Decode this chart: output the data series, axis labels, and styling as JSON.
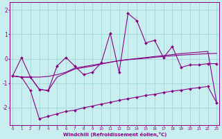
{
  "xlabel": "Windchill (Refroidissement éolien,°C)",
  "bg_color": "#c8eef0",
  "line_color": "#880088",
  "grid_color": "#a0d8d8",
  "x": [
    0,
    1,
    2,
    3,
    4,
    5,
    6,
    7,
    8,
    9,
    10,
    11,
    12,
    13,
    14,
    15,
    16,
    17,
    18,
    19,
    20,
    21,
    22,
    23
  ],
  "y_jagged": [
    -0.7,
    0.05,
    -0.75,
    -1.25,
    -1.3,
    -0.3,
    0.05,
    -0.3,
    -0.65,
    -0.55,
    -0.15,
    1.05,
    -0.55,
    1.85,
    1.55,
    0.65,
    0.75,
    0.05,
    0.5,
    -0.35,
    -0.25,
    -0.25,
    -0.2,
    -0.2
  ],
  "y_lower": [
    -0.7,
    -0.75,
    -1.3,
    -2.45,
    -2.35,
    -2.25,
    -2.15,
    -2.1,
    -2.0,
    -1.93,
    -1.85,
    -1.78,
    -1.7,
    -1.63,
    -1.57,
    -1.5,
    -1.45,
    -1.38,
    -1.32,
    -1.28,
    -1.22,
    -1.18,
    -1.13,
    -1.8
  ],
  "y_mid1": [
    -0.7,
    -0.75,
    -0.75,
    -0.75,
    -0.72,
    -0.65,
    -0.55,
    -0.38,
    -0.32,
    -0.26,
    -0.2,
    -0.14,
    -0.08,
    -0.04,
    -0.01,
    0.02,
    0.06,
    0.09,
    0.12,
    0.15,
    0.17,
    0.19,
    0.21,
    0.22
  ],
  "y_mid2": [
    -0.7,
    -0.75,
    -0.75,
    -1.25,
    -1.3,
    -0.75,
    -0.58,
    -0.42,
    -0.36,
    -0.3,
    -0.22,
    -0.14,
    -0.08,
    -0.03,
    0.01,
    0.05,
    0.09,
    0.13,
    0.17,
    0.21,
    0.24,
    0.27,
    0.3,
    -1.8
  ],
  "ylim": [
    -2.7,
    2.3
  ],
  "xlim": [
    -0.3,
    23.3
  ],
  "yticks": [
    -2,
    -1,
    0,
    1,
    2
  ],
  "xticks": [
    0,
    1,
    2,
    3,
    4,
    5,
    6,
    7,
    8,
    9,
    10,
    11,
    12,
    13,
    14,
    15,
    16,
    17,
    18,
    19,
    20,
    21,
    22,
    23
  ]
}
